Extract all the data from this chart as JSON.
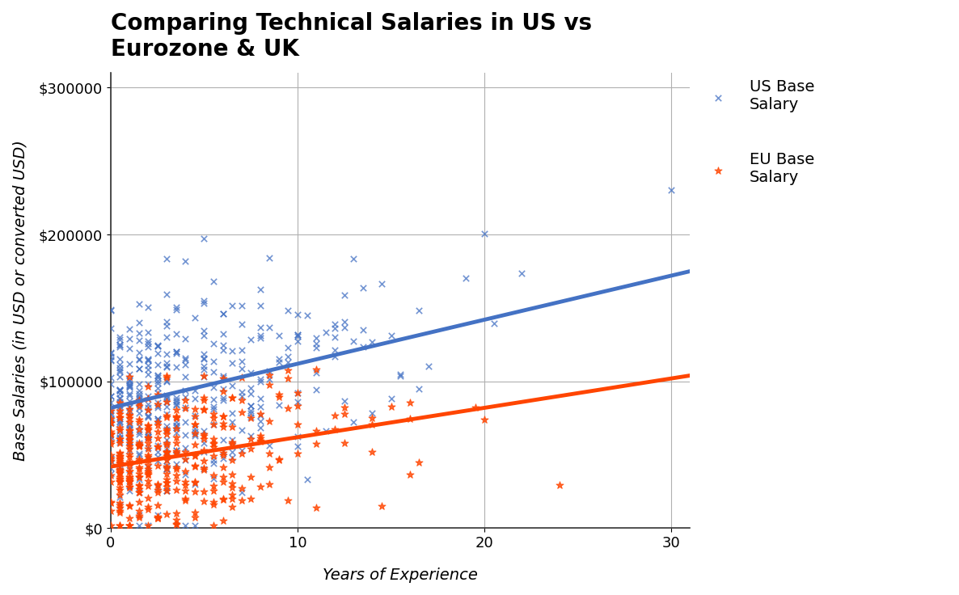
{
  "title": "Comparing Technical Salaries in US vs\nEurozone & UK",
  "xlabel": "Years of Experience",
  "ylabel": "Base Salaries (in USD or converted USD)",
  "title_fontsize": 20,
  "axis_label_fontsize": 14,
  "tick_fontsize": 13,
  "legend_fontsize": 14,
  "background_color": "#ffffff",
  "us_color": "#4472C4",
  "eu_color": "#FF4500",
  "xlim": [
    0,
    31
  ],
  "ylim": [
    0,
    310000
  ],
  "xticks": [
    0,
    10,
    20,
    30
  ],
  "yticks": [
    0,
    100000,
    200000,
    300000
  ],
  "ytick_labels": [
    "$0",
    "$100000",
    "$200000",
    "$300000"
  ],
  "us_intercept": 82000,
  "us_slope": 3000,
  "eu_intercept": 42000,
  "eu_slope": 2000,
  "us_noise_std": 35000,
  "eu_noise_std": 25000,
  "us_n_points": 400,
  "eu_n_points": 350
}
